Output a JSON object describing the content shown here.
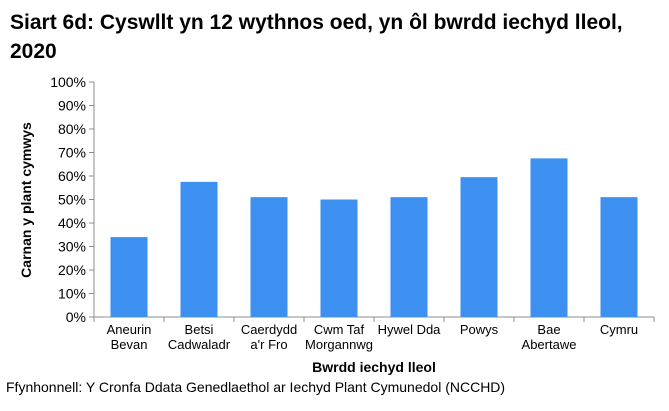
{
  "title": "Siart 6d: Cyswllt yn 12 wythnos oed, yn ôl bwrdd iechyd lleol, 2020",
  "source": "Ffynhonnell: Y Cronfa Ddata Genedlaethol ar Iechyd Plant Cymunedol (NCCHD)",
  "chart_data": {
    "type": "bar",
    "title": "Siart 6d: Cyswllt yn 12 wythnos oed, yn ôl bwrdd iechyd lleol, 2020",
    "xlabel": "Bwrdd iechyd lleol",
    "ylabel": "Carnan y plant cymwys",
    "categories": [
      [
        "Aneurin",
        "Bevan"
      ],
      [
        "Betsi",
        "Cadwaladr"
      ],
      [
        "Caerdydd",
        "a'r Fro"
      ],
      [
        "Cwm Taf",
        "Morgannwg"
      ],
      [
        "Hywel Dda"
      ],
      [
        "Powys"
      ],
      [
        "Bae",
        "Abertawe"
      ],
      [
        "Cymru"
      ]
    ],
    "values": [
      34,
      57.5,
      51,
      50,
      51,
      59.5,
      67.5,
      51
    ],
    "ylim": [
      0,
      100
    ],
    "yticks": [
      "0%",
      "10%",
      "20%",
      "30%",
      "40%",
      "50%",
      "60%",
      "70%",
      "80%",
      "90%",
      "100%"
    ],
    "grid": false,
    "legend": "none",
    "bar_color": "#3d8ff0"
  }
}
